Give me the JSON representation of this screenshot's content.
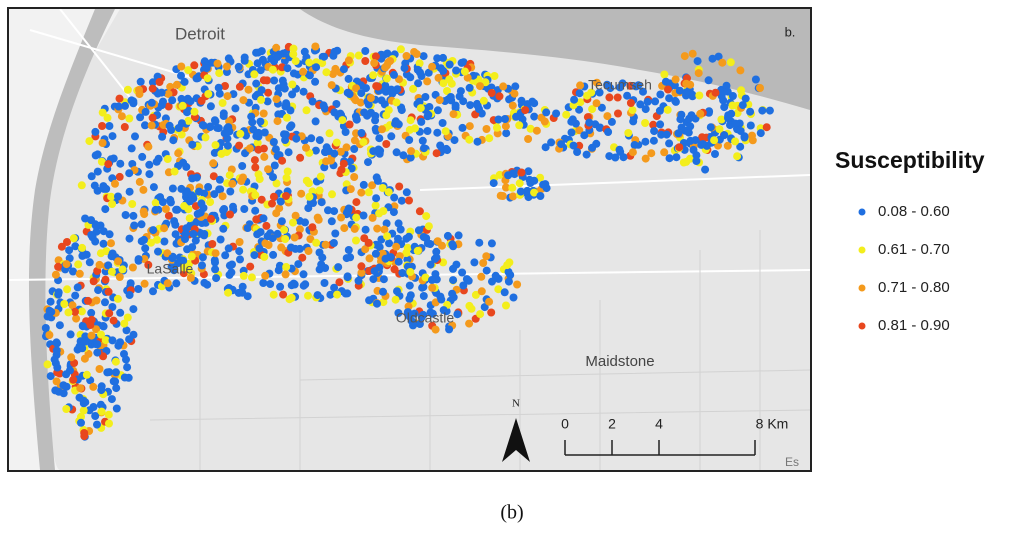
{
  "panel_label": "b.",
  "places": [
    "Detroit",
    "Tecumseh",
    "LaSalle",
    "Oldcastle",
    "Maidstone"
  ],
  "legend": {
    "title": "Susceptibility",
    "classes": [
      {
        "label": "0.08 - 0.60",
        "color": "#1f6fe0"
      },
      {
        "label": "0.61 - 0.70",
        "color": "#f3ee1c"
      },
      {
        "label": "0.71 - 0.80",
        "color": "#f49a1c"
      },
      {
        "label": "0.81 - 0.90",
        "color": "#e8471e"
      }
    ]
  },
  "north_arrow": "N",
  "scale_bar": [
    "0",
    "2",
    "4",
    "8 Km"
  ],
  "attribution": "Es",
  "caption": "(b)"
}
